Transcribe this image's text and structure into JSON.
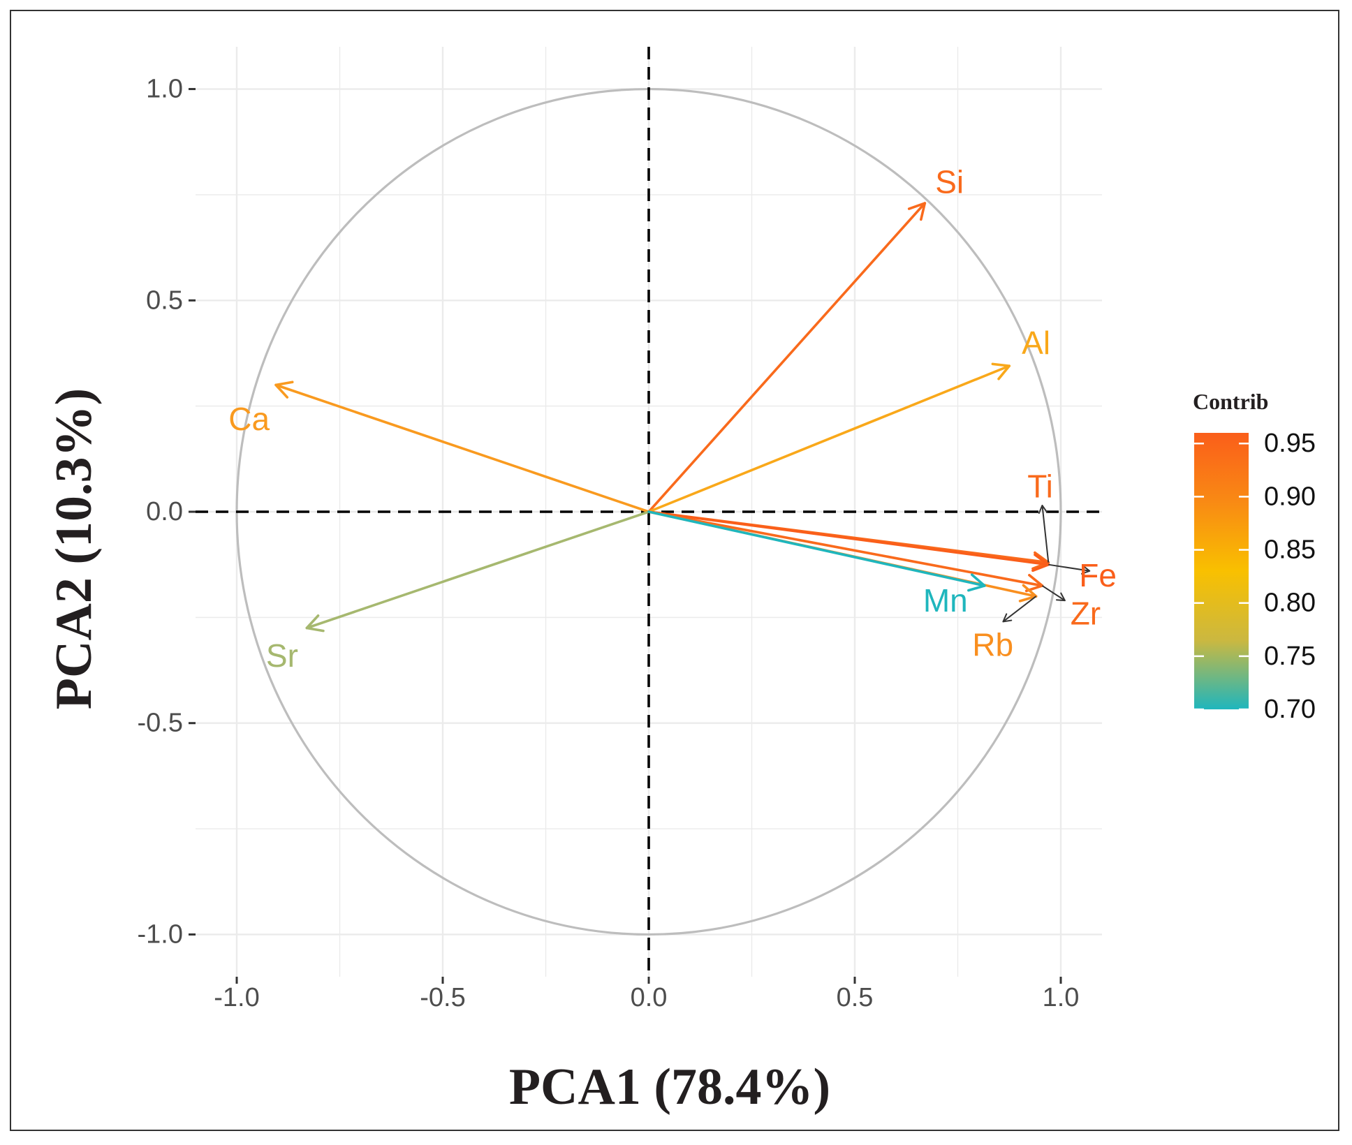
{
  "chart_data": {
    "type": "scatter",
    "subtype": "pca-variable-correlation-circle",
    "title": "",
    "xlabel": "PCA1 (78.4%)",
    "ylabel": "PCA2 (10.3%)",
    "xlim": [
      -1.1,
      1.1
    ],
    "ylim": [
      -1.1,
      1.1
    ],
    "x_ticks": [
      -1.0,
      -0.5,
      0.0,
      0.5,
      1.0
    ],
    "x_tick_labels": [
      "-1.0",
      "-0.5",
      "0.0",
      "0.5",
      "1.0"
    ],
    "y_ticks": [
      1.0,
      0.5,
      0.0,
      -0.5,
      -1.0
    ],
    "y_tick_labels": [
      "1.0",
      "0.5",
      "0.0",
      "-0.5",
      "-1.0"
    ],
    "grid": true,
    "unit_circle": true,
    "reference_lines": [
      0,
      0
    ],
    "variables": [
      {
        "name": "Si",
        "x": 0.67,
        "y": 0.73,
        "contrib": 0.94,
        "color": "#f96a1c",
        "label_x": 0.73,
        "label_y": 0.78
      },
      {
        "name": "Al",
        "x": 0.875,
        "y": 0.345,
        "contrib": 0.86,
        "color": "#f9a81a",
        "label_x": 0.94,
        "label_y": 0.4
      },
      {
        "name": "Ca",
        "x": -0.905,
        "y": 0.3,
        "contrib": 0.87,
        "color": "#f99a1f",
        "label_x": -0.97,
        "label_y": 0.22
      },
      {
        "name": "Sr",
        "x": -0.83,
        "y": -0.275,
        "contrib": 0.78,
        "color": "#a6b86f",
        "label_x": -0.89,
        "label_y": -0.34
      },
      {
        "name": "Ti",
        "x": 0.97,
        "y": -0.12,
        "contrib": 0.94,
        "color": "#f96a1c",
        "label_x": 0.95,
        "label_y": 0.06,
        "repel_x": 0.955,
        "repel_y": 0.015
      },
      {
        "name": "Fe",
        "x": 0.97,
        "y": -0.125,
        "contrib": 0.95,
        "color": "#fa5e1a",
        "label_x": 1.09,
        "label_y": -0.15,
        "repel_x": 1.07,
        "repel_y": -0.14
      },
      {
        "name": "Zr",
        "x": 0.955,
        "y": -0.175,
        "contrib": 0.94,
        "color": "#f96a1c",
        "label_x": 1.06,
        "label_y": -0.24,
        "repel_x": 1.01,
        "repel_y": -0.21
      },
      {
        "name": "Rb",
        "x": 0.94,
        "y": -0.2,
        "contrib": 0.89,
        "color": "#f98f1f",
        "label_x": 0.835,
        "label_y": -0.315,
        "repel_x": 0.86,
        "repel_y": -0.26
      },
      {
        "name": "Mn",
        "x": 0.815,
        "y": -0.175,
        "contrib": 0.7,
        "color": "#1fb6bd",
        "label_x": 0.72,
        "label_y": -0.21
      }
    ],
    "legend": {
      "title": "Contrib",
      "position": "right",
      "type": "colorbar",
      "range": [
        0.7,
        0.96
      ],
      "ticks": [
        0.95,
        0.9,
        0.85,
        0.8,
        0.75,
        0.7
      ],
      "tick_labels": [
        "0.95",
        "0.90",
        "0.85",
        "0.80",
        "0.75",
        "0.70"
      ],
      "gradient": [
        "#1fb6bd",
        "#cbb840",
        "#f9c000",
        "#f98a14",
        "#fa5e1a"
      ]
    },
    "colors": {
      "circle": "#bdbdbd",
      "grid": "#ebebeb",
      "reference": "#000000",
      "axis_tick": "#333333",
      "repel_segment": "#333333"
    }
  }
}
